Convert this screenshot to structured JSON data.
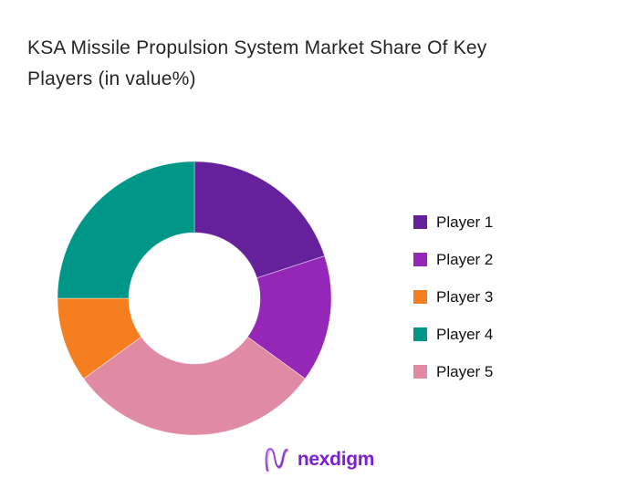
{
  "header": {
    "title_line1": "KSA Missile Propulsion System Market Share Of Key",
    "title_line2": "Players (in value%)"
  },
  "chart_data": {
    "type": "pie",
    "subtype": "donut",
    "title": "KSA Missile Propulsion System Market Share Of Key Players (in value%)",
    "unit": "value %",
    "labels": [
      "Player 1",
      "Player 2",
      "Player 3",
      "Player 4",
      "Player 5"
    ],
    "values": [
      20,
      15,
      10,
      25,
      30
    ],
    "colors": [
      "#65209B",
      "#9527B8",
      "#F57E20",
      "#009688",
      "#E18AA4"
    ],
    "draw_order_clockwise_from_top": [
      "Player 1",
      "Player 2",
      "Player 5",
      "Player 3",
      "Player 4"
    ],
    "start_angle_deg_from_top": 0,
    "inner_radius_ratio": 0.48,
    "legend_position": "right",
    "grid": false
  },
  "footer": {
    "brand": "nexdigm",
    "brand_color": "#7A1FD3"
  }
}
